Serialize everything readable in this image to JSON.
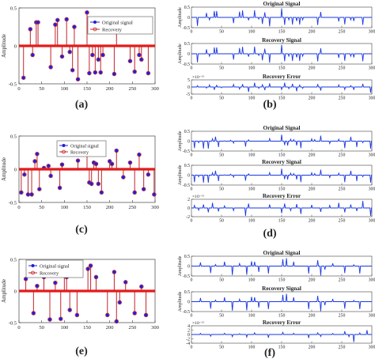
{
  "panel_labels": [
    "(a)",
    "(b)",
    "(c)",
    "(d)",
    "(e)",
    "(f)"
  ],
  "colors": {
    "original_marker": "#1f1fd6",
    "recovery_line": "#c0242a",
    "baseline": "#e21b1b",
    "subplot_signal": "#1a37e0"
  },
  "chart_data": [
    {
      "id": "a",
      "type": "scatter",
      "style": "stem",
      "xlabel": "",
      "ylabel": "Amplitude",
      "xlim": [
        0,
        300
      ],
      "ylim": [
        -0.5,
        0.5
      ],
      "xticks": [
        0,
        50,
        100,
        150,
        200,
        250,
        300
      ],
      "yticks": [
        -0.5,
        0,
        0.5
      ],
      "ytick_labels": [
        "-0.5",
        "0",
        "0.5"
      ],
      "legend": [
        "Original signal",
        "Recovery"
      ],
      "legend_position": "top-right",
      "series": [
        {
          "name": "Original signal",
          "x": [
            10,
            25,
            30,
            38,
            42,
            70,
            80,
            85,
            95,
            105,
            112,
            118,
            122,
            130,
            150,
            155,
            162,
            168,
            175,
            180,
            185,
            210,
            215,
            245,
            255,
            265,
            270,
            285
          ],
          "y": [
            -0.42,
            0.22,
            -0.12,
            0.31,
            0.31,
            -0.28,
            0.28,
            0.34,
            -0.14,
            0.35,
            -0.08,
            -0.32,
            0.25,
            -0.44,
            0.44,
            -0.36,
            -0.12,
            -0.35,
            -0.18,
            -0.35,
            -0.12,
            -0.37,
            0.27,
            -0.2,
            -0.34,
            -0.12,
            -0.18,
            -0.36
          ]
        }
      ]
    },
    {
      "id": "b",
      "type": "line",
      "subplots": [
        {
          "title": "Original Signal",
          "ylabel": "Amplitude",
          "ylim": [
            -0.5,
            0.5
          ],
          "yticks": [
            -0.5,
            0,
            0.5
          ],
          "ytick_labels": [
            "-0.5",
            "0",
            "0.5"
          ],
          "xticks": [
            0,
            50,
            100,
            150,
            200,
            250,
            300
          ],
          "multiplier": "",
          "x": [
            10,
            25,
            30,
            38,
            42,
            70,
            80,
            85,
            95,
            105,
            112,
            118,
            122,
            130,
            150,
            155,
            162,
            168,
            175,
            180,
            185,
            210,
            215,
            245,
            255,
            265,
            270,
            285
          ],
          "y": [
            -0.42,
            0.22,
            -0.12,
            0.31,
            0.31,
            -0.28,
            0.28,
            0.34,
            -0.14,
            0.35,
            -0.08,
            -0.32,
            0.25,
            -0.44,
            0.44,
            -0.36,
            -0.12,
            -0.35,
            -0.18,
            -0.35,
            -0.12,
            -0.37,
            0.27,
            -0.2,
            -0.34,
            -0.12,
            -0.18,
            -0.36
          ]
        },
        {
          "title": "Recovery Signal",
          "ylabel": "Amplitude",
          "ylim": [
            -0.5,
            0.5
          ],
          "yticks": [
            -0.5,
            0,
            0.5
          ],
          "ytick_labels": [
            "-0.5",
            "0",
            "0.5"
          ],
          "xticks": [
            0,
            50,
            100,
            150,
            200,
            250,
            300
          ],
          "multiplier": "",
          "x": [
            10,
            25,
            30,
            38,
            42,
            70,
            80,
            85,
            95,
            105,
            112,
            118,
            122,
            130,
            150,
            155,
            162,
            168,
            175,
            180,
            185,
            210,
            215,
            245,
            255,
            265,
            270,
            285
          ],
          "y": [
            -0.42,
            0.22,
            -0.12,
            0.31,
            0.31,
            -0.28,
            0.28,
            0.34,
            -0.14,
            0.35,
            -0.08,
            -0.32,
            0.25,
            -0.44,
            0.44,
            -0.36,
            -0.12,
            -0.35,
            -0.18,
            -0.35,
            -0.12,
            -0.37,
            0.27,
            -0.2,
            -0.34,
            -0.12,
            -0.18,
            -0.36
          ]
        },
        {
          "title": "Recovery Error",
          "ylabel": "",
          "ylim": [
            -5,
            5
          ],
          "yticks": [
            -5,
            0,
            5
          ],
          "ytick_labels": [
            "-5",
            "0",
            "5"
          ],
          "xticks": [
            0,
            50,
            100,
            150,
            200,
            250,
            300
          ],
          "multiplier": "×10⁻¹¹",
          "x": [
            10,
            25,
            30,
            38,
            42,
            50,
            70,
            80,
            85,
            95,
            105,
            112,
            118,
            122,
            130,
            150,
            155,
            162,
            168,
            175,
            180,
            185,
            210,
            215,
            245,
            255,
            265,
            270,
            285,
            298
          ],
          "y": [
            1.0,
            -0.8,
            1.5,
            -2.0,
            1.2,
            -0.6,
            1.8,
            -1.5,
            2.0,
            -3.5,
            3.0,
            -1.0,
            1.6,
            -2.2,
            2.5,
            -1.8,
            3.0,
            -1.2,
            2.2,
            -3.0,
            1.4,
            -1.0,
            2.0,
            -2.5,
            1.5,
            -1.8,
            1.0,
            -2.0,
            2.2,
            -4.0
          ]
        }
      ]
    },
    {
      "id": "c",
      "type": "scatter",
      "style": "stem",
      "xlabel": "",
      "ylabel": "Amplitude",
      "xlim": [
        0,
        300
      ],
      "ylim": [
        -0.5,
        0.5
      ],
      "xticks": [
        0,
        50,
        100,
        150,
        200,
        250,
        300
      ],
      "yticks": [
        -0.5,
        0,
        0.5
      ],
      "ytick_labels": [
        "-0.5",
        "0",
        "0.5"
      ],
      "legend": [
        "Original signal",
        "Recovery"
      ],
      "legend_position": "top-center",
      "series": [
        {
          "name": "Original signal",
          "x": [
            5,
            12,
            20,
            28,
            35,
            40,
            45,
            55,
            65,
            70,
            90,
            95,
            130,
            150,
            155,
            160,
            165,
            170,
            175,
            182,
            200,
            205,
            215,
            230,
            245,
            255,
            265,
            275,
            285,
            298
          ],
          "y": [
            -0.35,
            -0.08,
            -0.38,
            -0.38,
            0.12,
            0.23,
            -0.3,
            0.02,
            0.05,
            -0.1,
            -0.28,
            0.07,
            0.13,
            0.33,
            -0.2,
            -0.22,
            0.1,
            0.08,
            -0.22,
            -0.35,
            0.12,
            0.08,
            0.28,
            -0.12,
            0.1,
            -0.35,
            0.22,
            -0.3,
            -0.08,
            -0.38
          ]
        }
      ]
    },
    {
      "id": "d",
      "type": "line",
      "subplots": [
        {
          "title": "Original Signal",
          "ylabel": "Amplitude",
          "ylim": [
            -0.5,
            0.5
          ],
          "yticks": [
            -0.5,
            0,
            0.5
          ],
          "ytick_labels": [
            "-0.5",
            "0",
            "0.5"
          ],
          "xticks": [
            0,
            50,
            100,
            150,
            200,
            250,
            300
          ],
          "multiplier": "",
          "x": [
            5,
            12,
            20,
            28,
            35,
            40,
            45,
            55,
            65,
            70,
            90,
            95,
            130,
            150,
            155,
            160,
            165,
            170,
            175,
            182,
            200,
            205,
            215,
            230,
            245,
            255,
            265,
            275,
            285,
            298
          ],
          "y": [
            -0.35,
            -0.08,
            -0.38,
            -0.38,
            0.12,
            0.23,
            -0.3,
            0.02,
            0.05,
            -0.1,
            -0.28,
            0.07,
            0.13,
            0.33,
            -0.2,
            -0.22,
            0.1,
            0.08,
            -0.22,
            -0.35,
            0.12,
            0.08,
            0.28,
            -0.12,
            0.1,
            -0.35,
            0.22,
            -0.3,
            -0.08,
            -0.38
          ]
        },
        {
          "title": "Recovery Signal",
          "ylabel": "Amplitude",
          "ylim": [
            -0.5,
            0.5
          ],
          "yticks": [
            -0.5,
            0,
            0.5
          ],
          "ytick_labels": [
            "-0.5",
            "0",
            "0.5"
          ],
          "xticks": [
            0,
            50,
            100,
            150,
            200,
            250,
            300
          ],
          "multiplier": "",
          "x": [
            5,
            12,
            20,
            28,
            35,
            40,
            45,
            55,
            65,
            70,
            90,
            95,
            130,
            150,
            155,
            160,
            165,
            170,
            175,
            182,
            200,
            205,
            215,
            230,
            245,
            255,
            265,
            275,
            285,
            298
          ],
          "y": [
            -0.35,
            -0.08,
            -0.38,
            -0.38,
            0.12,
            0.23,
            -0.3,
            0.02,
            0.05,
            -0.1,
            -0.28,
            0.07,
            0.13,
            0.33,
            -0.2,
            -0.22,
            0.1,
            0.08,
            -0.22,
            -0.35,
            0.12,
            0.08,
            0.28,
            -0.12,
            0.1,
            -0.35,
            0.22,
            -0.3,
            -0.08,
            -0.38
          ]
        },
        {
          "title": "Recovery Error",
          "ylabel": "",
          "ylim": [
            -2,
            2
          ],
          "yticks": [
            -2,
            0,
            2
          ],
          "ytick_labels": [
            "-2",
            "0",
            "2"
          ],
          "xticks": [
            0,
            50,
            100,
            150,
            200,
            250,
            300
          ],
          "multiplier": "×10⁻¹¹",
          "x": [
            5,
            12,
            20,
            28,
            35,
            45,
            55,
            70,
            90,
            95,
            130,
            150,
            155,
            165,
            175,
            182,
            200,
            215,
            230,
            245,
            255,
            265,
            275,
            285,
            298
          ],
          "y": [
            0.6,
            -0.5,
            0.8,
            -1.0,
            1.2,
            -0.8,
            0.5,
            -0.6,
            -1.8,
            1.0,
            0.8,
            -1.2,
            1.0,
            -0.6,
            0.9,
            -1.4,
            0.7,
            -0.9,
            0.6,
            1.2,
            -1.0,
            0.8,
            -0.7,
            1.6,
            -1.8
          ]
        }
      ]
    },
    {
      "id": "e",
      "type": "scatter",
      "style": "stem",
      "xlabel": "",
      "ylabel": "Amplitude",
      "xlim": [
        0,
        300
      ],
      "ylim": [
        -0.5,
        0.5
      ],
      "xticks": [
        0,
        50,
        100,
        150,
        200,
        250,
        300
      ],
      "yticks": [
        -0.5,
        0,
        0.5
      ],
      "ytick_labels": [
        "-0.5",
        "0",
        "0.5"
      ],
      "legend": [
        "Original signal",
        "Recovery"
      ],
      "legend_position": "top-left",
      "series": [
        {
          "name": "Original signal",
          "x": [
            15,
            32,
            40,
            55,
            68,
            80,
            92,
            100,
            105,
            112,
            128,
            152,
            158,
            170,
            195,
            210,
            215,
            222,
            235,
            255,
            270,
            280
          ],
          "y": [
            0.19,
            -0.35,
            0.08,
            0.22,
            -0.45,
            0.13,
            -0.44,
            0.24,
            0.22,
            -0.3,
            -0.38,
            0.35,
            0.4,
            0.22,
            -0.38,
            0.3,
            -0.48,
            -0.18,
            0.14,
            -0.35,
            0.07,
            -0.38
          ]
        }
      ]
    },
    {
      "id": "f",
      "type": "line",
      "subplots": [
        {
          "title": "Original Signal",
          "ylabel": "Amplitude",
          "ylim": [
            -0.5,
            0.5
          ],
          "yticks": [
            -0.5,
            0,
            0.5
          ],
          "ytick_labels": [
            "-0.5",
            "0",
            "0.5"
          ],
          "xticks": [
            0,
            50,
            100,
            150,
            200,
            250,
            300
          ],
          "multiplier": "",
          "x": [
            15,
            32,
            40,
            55,
            68,
            80,
            92,
            100,
            105,
            112,
            128,
            152,
            158,
            170,
            195,
            210,
            215,
            222,
            235,
            255,
            270,
            280
          ],
          "y": [
            0.19,
            -0.35,
            0.08,
            0.22,
            -0.45,
            0.13,
            -0.44,
            0.24,
            0.22,
            -0.3,
            -0.38,
            0.35,
            0.4,
            0.22,
            -0.38,
            0.3,
            -0.48,
            -0.18,
            0.14,
            -0.35,
            0.07,
            -0.38
          ]
        },
        {
          "title": "Recovery Signal",
          "ylabel": "Amplitude",
          "ylim": [
            -0.5,
            0.5
          ],
          "yticks": [
            -0.5,
            0,
            0.5
          ],
          "ytick_labels": [
            "-0.5",
            "0",
            "0.5"
          ],
          "xticks": [
            0,
            50,
            100,
            150,
            200,
            250,
            300
          ],
          "multiplier": "",
          "x": [
            15,
            32,
            40,
            55,
            68,
            80,
            92,
            100,
            105,
            112,
            128,
            152,
            158,
            170,
            195,
            210,
            215,
            222,
            235,
            255,
            270,
            280
          ],
          "y": [
            0.19,
            -0.35,
            0.08,
            0.22,
            -0.45,
            0.13,
            -0.44,
            0.24,
            0.22,
            -0.3,
            -0.38,
            0.35,
            0.4,
            0.22,
            -0.38,
            0.3,
            -0.48,
            -0.18,
            0.14,
            -0.35,
            0.07,
            -0.38
          ]
        },
        {
          "title": "Recovery Error",
          "ylabel": "",
          "ylim": [
            -4,
            4
          ],
          "yticks": [
            -4,
            -2,
            0,
            2,
            4
          ],
          "ytick_labels": [
            "-4",
            "-2",
            "0",
            "2",
            "4"
          ],
          "xticks": [
            0,
            50,
            100,
            150,
            200,
            250,
            300
          ],
          "multiplier": "×10⁻¹¹",
          "x": [
            15,
            32,
            55,
            68,
            80,
            92,
            105,
            128,
            152,
            170,
            195,
            210,
            215,
            235,
            255,
            262,
            270,
            280,
            292
          ],
          "y": [
            0.5,
            -0.8,
            0.6,
            -1.0,
            0.4,
            -1.2,
            0.8,
            -1.5,
            1.0,
            0.6,
            -1.6,
            0.8,
            -0.9,
            0.5,
            1.5,
            -1.0,
            -3.5,
            0.7,
            2.0
          ]
        }
      ]
    }
  ]
}
